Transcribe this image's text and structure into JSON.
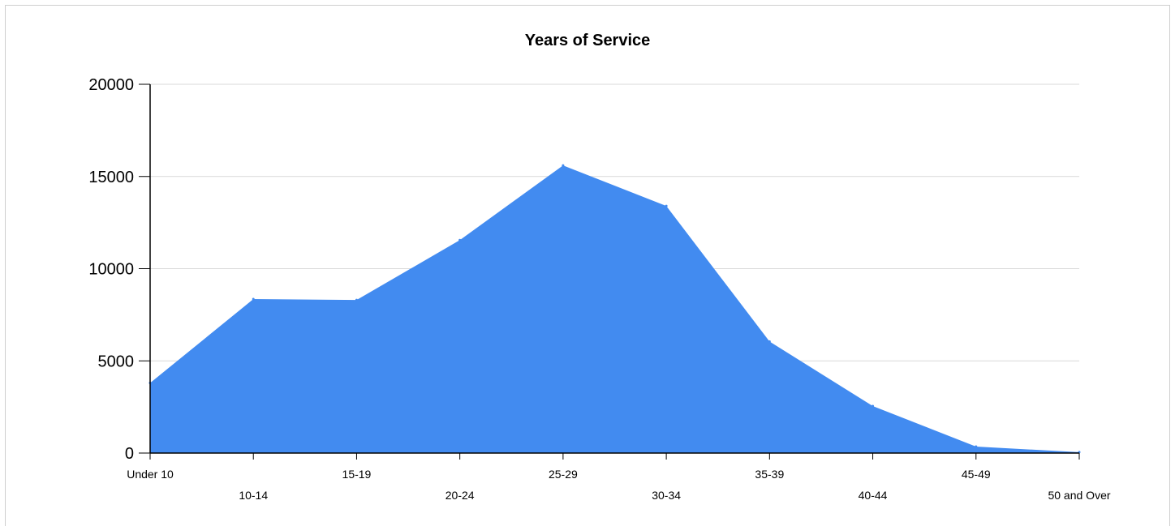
{
  "chart_data": {
    "type": "area",
    "title": "Years of Service",
    "xlabel": "",
    "ylabel": "",
    "categories": [
      "Under 10",
      "10-14",
      "15-19",
      "20-24",
      "25-29",
      "30-34",
      "35-39",
      "40-44",
      "45-49",
      "50 and Over"
    ],
    "values": [
      3800,
      8350,
      8300,
      11550,
      15600,
      13400,
      6050,
      2550,
      350,
      50
    ],
    "ylim": [
      0,
      20000
    ],
    "yticks": [
      "0",
      "5000",
      "10000",
      "15000",
      "20000"
    ],
    "grid": true,
    "legend": "none",
    "colors": {
      "area": "#428bf0",
      "grid": "#d9d9d9",
      "axis": "#000000"
    }
  }
}
